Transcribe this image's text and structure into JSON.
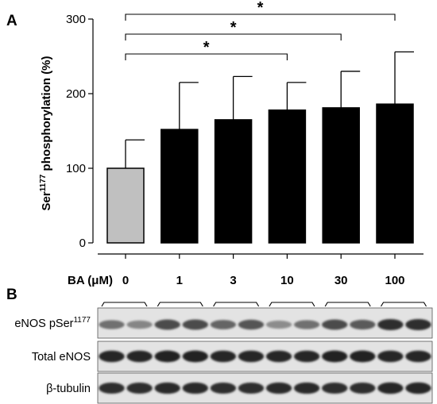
{
  "panels": {
    "a": "A",
    "b": "B"
  },
  "chart_data": {
    "type": "bar",
    "title": "",
    "xlabel": "BA (μM)",
    "ylabel_main": "Ser",
    "ylabel_sup": "1177",
    "ylabel_rest": " phosphorylation (%)",
    "categories": [
      "0",
      "1",
      "3",
      "10",
      "30",
      "100"
    ],
    "values": [
      100,
      152,
      165,
      178,
      181,
      186
    ],
    "errors_upper": [
      138,
      215,
      223,
      215,
      230,
      256
    ],
    "bar_colors": [
      "#c0c0c0",
      "#000000",
      "#000000",
      "#000000",
      "#000000",
      "#000000"
    ],
    "ylim": [
      0,
      300
    ],
    "yticks": [
      "0",
      "100",
      "200",
      "300"
    ],
    "grid": false,
    "significance": [
      {
        "from": 0,
        "to": 3,
        "label": "*"
      },
      {
        "from": 0,
        "to": 4,
        "label": "*"
      },
      {
        "from": 0,
        "to": 5,
        "label": "*"
      }
    ]
  },
  "blot": {
    "rows": [
      {
        "label": "eNOS pSer",
        "sup": "1177",
        "bands": [
          0.55,
          0.45,
          0.72,
          0.72,
          0.6,
          0.68,
          0.42,
          0.55,
          0.72,
          0.65,
          0.85,
          0.85
        ]
      },
      {
        "label": "Total eNOS",
        "sup": "",
        "bands": [
          0.9,
          0.9,
          0.92,
          0.92,
          0.9,
          0.9,
          0.9,
          0.9,
          0.92,
          0.92,
          0.9,
          0.9
        ]
      },
      {
        "label": "β-tubulin",
        "sup": "",
        "bands": [
          0.85,
          0.85,
          0.88,
          0.88,
          0.85,
          0.85,
          0.88,
          0.88,
          0.85,
          0.85,
          0.9,
          0.9
        ]
      }
    ]
  }
}
